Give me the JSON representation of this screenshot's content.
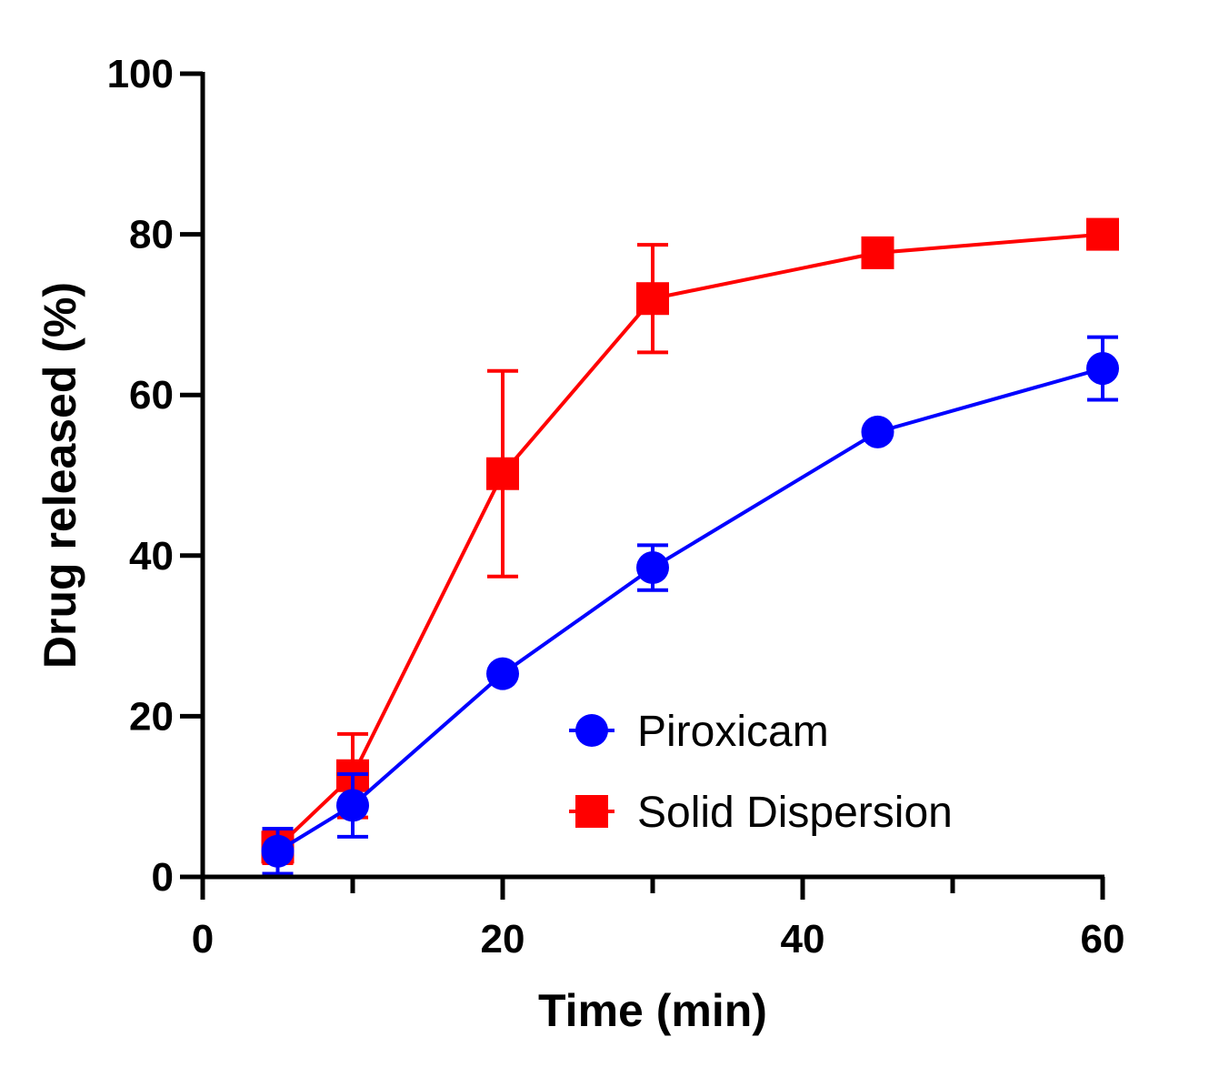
{
  "chart_data": {
    "type": "line",
    "xlabel": "Time (min)",
    "ylabel": "Drug released (%)",
    "xlim": [
      0,
      60
    ],
    "ylim": [
      0,
      100
    ],
    "xticks": [
      0,
      20,
      40,
      60
    ],
    "xticks_minor": [
      10,
      30,
      50
    ],
    "yticks": [
      0,
      20,
      40,
      60,
      80,
      100
    ],
    "grid": false,
    "legend_position": "bottom-right",
    "series": [
      {
        "name": "Piroxicam",
        "color": "#0000ff",
        "marker": "circle",
        "x": [
          5,
          10,
          20,
          30,
          45,
          60
        ],
        "y": [
          3.2,
          8.9,
          25.3,
          38.5,
          55.4,
          63.3
        ],
        "error": [
          2.8,
          3.9,
          0.0,
          2.8,
          0.0,
          3.9
        ]
      },
      {
        "name": "Solid Dispersion",
        "color": "#ff0000",
        "marker": "square",
        "x": [
          5,
          10,
          20,
          30,
          45,
          60
        ],
        "y": [
          3.7,
          12.6,
          50.2,
          72.0,
          77.7,
          80.0
        ],
        "error": [
          2.0,
          5.2,
          12.8,
          6.7,
          0.0,
          0.0
        ]
      }
    ]
  }
}
